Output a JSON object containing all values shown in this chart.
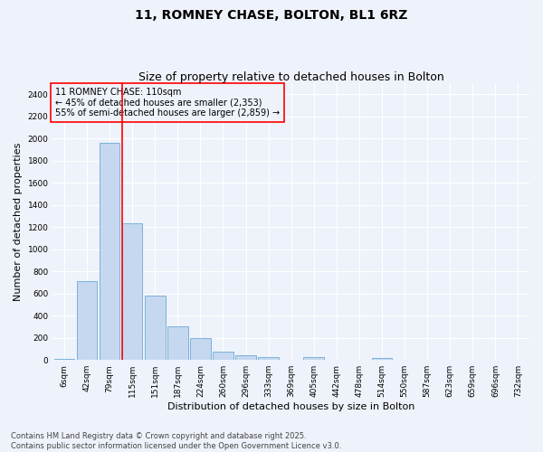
{
  "title_line1": "11, ROMNEY CHASE, BOLTON, BL1 6RZ",
  "title_line2": "Size of property relative to detached houses in Bolton",
  "xlabel": "Distribution of detached houses by size in Bolton",
  "ylabel": "Number of detached properties",
  "bar_labels": [
    "6sqm",
    "42sqm",
    "79sqm",
    "115sqm",
    "151sqm",
    "187sqm",
    "224sqm",
    "260sqm",
    "296sqm",
    "333sqm",
    "369sqm",
    "405sqm",
    "442sqm",
    "478sqm",
    "514sqm",
    "550sqm",
    "587sqm",
    "623sqm",
    "659sqm",
    "696sqm",
    "732sqm"
  ],
  "bar_values": [
    10,
    715,
    1960,
    1235,
    580,
    305,
    200,
    75,
    40,
    30,
    0,
    30,
    0,
    0,
    15,
    0,
    0,
    0,
    0,
    0,
    0
  ],
  "bar_color": "#c5d8f0",
  "bar_edgecolor": "#6aaad4",
  "background_color": "#eef2fa",
  "grid_color": "#ffffff",
  "vline_color": "red",
  "vline_position": 2.55,
  "annotation_title": "11 ROMNEY CHASE: 110sqm",
  "annotation_line1": "← 45% of detached houses are smaller (2,353)",
  "annotation_line2": "55% of semi-detached houses are larger (2,859) →",
  "annotation_box_edgecolor": "red",
  "ylim": [
    0,
    2500
  ],
  "yticks": [
    0,
    200,
    400,
    600,
    800,
    1000,
    1200,
    1400,
    1600,
    1800,
    2000,
    2200,
    2400
  ],
  "footnote": "Contains HM Land Registry data © Crown copyright and database right 2025.\nContains public sector information licensed under the Open Government Licence v3.0.",
  "title_fontsize": 10,
  "subtitle_fontsize": 9,
  "tick_fontsize": 6.5,
  "ylabel_fontsize": 8,
  "xlabel_fontsize": 8,
  "annotation_fontsize": 7,
  "footnote_fontsize": 6
}
